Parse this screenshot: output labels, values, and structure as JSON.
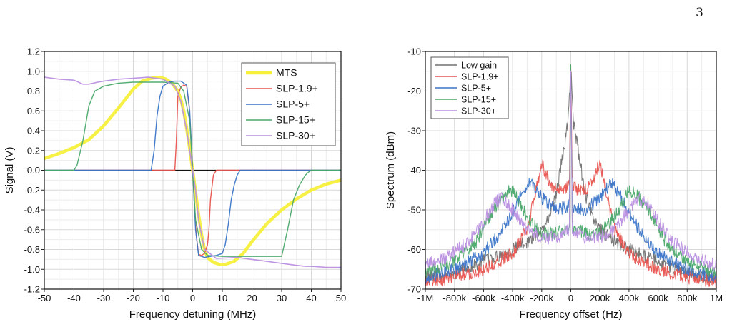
{
  "page": {
    "number": "3"
  },
  "chart_data": [
    {
      "type": "line",
      "title": "",
      "xlabel": "Frequency detuning (MHz)",
      "ylabel": "Signal (V)",
      "xlim": [
        -50,
        50
      ],
      "ylim": [
        -1.2,
        1.2
      ],
      "xticks": [
        -50,
        -40,
        -30,
        -20,
        -10,
        0,
        10,
        20,
        30,
        40,
        50
      ],
      "xtick_labels": [
        "-50",
        "-40",
        "-30",
        "-20",
        "-10",
        "0",
        "10",
        "20",
        "30",
        "40",
        "50"
      ],
      "yticks": [
        -1.2,
        -1.0,
        -0.8,
        -0.6,
        -0.4,
        -0.2,
        0.0,
        0.2,
        0.4,
        0.6,
        0.8,
        1.0,
        1.2
      ],
      "ytick_labels": [
        "-1.2",
        "-1.0",
        "-0.8",
        "-0.6",
        "-0.4",
        "-0.2",
        "0.0",
        "0.2",
        "0.4",
        "0.6",
        "0.8",
        "1.0",
        "1.2"
      ],
      "grid": true,
      "legend_position": "top-right",
      "zero_line": true,
      "series": [
        {
          "name": "MTS",
          "color": "#f6f03a",
          "x": [
            -50,
            -45,
            -40,
            -35,
            -30,
            -25,
            -20,
            -17,
            -14,
            -11,
            -9,
            -7,
            -5,
            -4,
            -3,
            -2,
            -1,
            0,
            1,
            2,
            3,
            4,
            5,
            7,
            9,
            11,
            14,
            17,
            20,
            25,
            30,
            35,
            40,
            45,
            50
          ],
          "y": [
            0.12,
            0.17,
            0.23,
            0.31,
            0.45,
            0.63,
            0.82,
            0.9,
            0.93,
            0.94,
            0.92,
            0.88,
            0.8,
            0.72,
            0.6,
            0.42,
            0.22,
            0.0,
            -0.22,
            -0.45,
            -0.65,
            -0.8,
            -0.88,
            -0.93,
            -0.95,
            -0.95,
            -0.92,
            -0.84,
            -0.72,
            -0.54,
            -0.4,
            -0.29,
            -0.2,
            -0.14,
            -0.1
          ]
        },
        {
          "name": "SLP-1.9+",
          "color": "#e8534e",
          "x": [
            -50,
            -6,
            -5.5,
            -5,
            -4,
            -3,
            -2,
            -1.2,
            -0.6,
            0,
            0.6,
            1.2,
            2,
            3,
            4,
            5,
            5.5,
            6,
            7,
            8,
            50
          ],
          "y": [
            0,
            0,
            0.3,
            0.75,
            0.84,
            0.86,
            0.85,
            0.65,
            0.35,
            0,
            -0.35,
            -0.65,
            -0.85,
            -0.86,
            -0.84,
            -0.75,
            -0.6,
            -0.3,
            -0.05,
            0,
            0
          ]
        },
        {
          "name": "SLP-5+",
          "color": "#3a74c8",
          "x": [
            -50,
            -14,
            -13,
            -12,
            -11,
            -10,
            -8,
            -6,
            -4,
            -2,
            -1,
            0,
            1,
            2,
            4,
            6,
            8,
            10,
            11,
            12,
            13,
            14,
            15,
            16,
            50
          ],
          "y": [
            0,
            0,
            0.2,
            0.55,
            0.75,
            0.85,
            0.89,
            0.9,
            0.9,
            0.86,
            0.6,
            0,
            -0.6,
            -0.86,
            -0.88,
            -0.87,
            -0.86,
            -0.84,
            -0.75,
            -0.55,
            -0.3,
            -0.15,
            -0.05,
            0,
            0
          ]
        },
        {
          "name": "SLP-15+",
          "color": "#4aa86a",
          "x": [
            -50,
            -40,
            -39,
            -37,
            -35,
            -33,
            -30,
            -25,
            -20,
            -15,
            -10,
            -5,
            -3,
            -1,
            0,
            1,
            3,
            5,
            10,
            15,
            20,
            25,
            30,
            32,
            34,
            36,
            38,
            39,
            40,
            50
          ],
          "y": [
            0,
            0,
            0.05,
            0.3,
            0.65,
            0.8,
            0.85,
            0.88,
            0.89,
            0.89,
            0.89,
            0.88,
            0.8,
            0.5,
            0,
            -0.5,
            -0.8,
            -0.86,
            -0.87,
            -0.87,
            -0.87,
            -0.87,
            -0.87,
            -0.6,
            -0.3,
            -0.15,
            -0.05,
            -0.02,
            0,
            0
          ]
        },
        {
          "name": "SLP-30+",
          "color": "#b98fe0",
          "x": [
            -50,
            -45,
            -40,
            -37,
            -35,
            -32,
            -30,
            -25,
            -20,
            -15,
            -10,
            -6,
            -4,
            -2,
            -1,
            0,
            1,
            2,
            4,
            8,
            15,
            20,
            25,
            30,
            35,
            38,
            40,
            45,
            50
          ],
          "y": [
            0.94,
            0.92,
            0.91,
            0.87,
            0.87,
            0.89,
            0.9,
            0.92,
            0.93,
            0.94,
            0.92,
            0.85,
            0.7,
            0.4,
            0.2,
            0,
            -0.2,
            -0.5,
            -0.8,
            -0.89,
            -0.88,
            -0.9,
            -0.92,
            -0.94,
            -0.96,
            -0.97,
            -0.97,
            -0.98,
            -0.98
          ]
        }
      ]
    },
    {
      "type": "line",
      "title": "",
      "xlabel": "Frequency offset (Hz)",
      "ylabel": "Spectrum (dBm)",
      "xlim": [
        -1000000,
        1000000
      ],
      "ylim": [
        -70,
        -10
      ],
      "xticks": [
        -1000000,
        -800000,
        -600000,
        -400000,
        -200000,
        0,
        200000,
        400000,
        600000,
        800000,
        1000000
      ],
      "xtick_labels": [
        "-1M",
        "-800k",
        "-600k",
        "-400k",
        "-200k",
        "0",
        "200k",
        "400k",
        "600k",
        "800k",
        "1M"
      ],
      "yticks": [
        -70,
        -60,
        -50,
        -40,
        -30,
        -20,
        -10
      ],
      "ytick_labels": [
        "-70",
        "-60",
        "-50",
        "-40",
        "-30",
        "-20",
        "-10"
      ],
      "grid": true,
      "legend_position": "top-left",
      "series": [
        {
          "name": "Low gain",
          "color": "#707070",
          "x": [
            -1000000,
            -800000,
            -600000,
            -400000,
            -300000,
            -200000,
            -150000,
            -100000,
            -50000,
            -20000,
            0,
            20000,
            50000,
            100000,
            150000,
            200000,
            300000,
            400000,
            600000,
            800000,
            1000000
          ],
          "y": [
            -67,
            -66,
            -63,
            -60,
            -58,
            -55,
            -52,
            -46,
            -35,
            -28,
            -14.5,
            -28,
            -35,
            -46,
            -52,
            -55,
            -58,
            -60,
            -63,
            -66,
            -67
          ]
        },
        {
          "name": "SLP-1.9+",
          "color": "#e8534e",
          "x": [
            -1000000,
            -800000,
            -600000,
            -400000,
            -300000,
            -250000,
            -200000,
            -150000,
            -100000,
            -50000,
            -10000,
            0,
            10000,
            50000,
            100000,
            150000,
            200000,
            250000,
            300000,
            400000,
            600000,
            800000,
            1000000
          ],
          "y": [
            -68,
            -67,
            -65,
            -61,
            -55,
            -47,
            -38,
            -43,
            -45,
            -45,
            -43,
            -14.5,
            -43,
            -45,
            -45,
            -43,
            -38,
            -47,
            -55,
            -61,
            -65,
            -67,
            -68
          ]
        },
        {
          "name": "SLP-5+",
          "color": "#3a74c8",
          "x": [
            -1000000,
            -800000,
            -600000,
            -450000,
            -350000,
            -280000,
            -200000,
            -100000,
            -10000,
            0,
            10000,
            100000,
            200000,
            280000,
            350000,
            450000,
            600000,
            800000,
            1000000
          ],
          "y": [
            -67,
            -65,
            -61,
            -54,
            -47,
            -43,
            -47,
            -50,
            -49,
            -14.5,
            -49,
            -50,
            -47,
            -43,
            -47,
            -54,
            -61,
            -65,
            -67
          ]
        },
        {
          "name": "SLP-15+",
          "color": "#4aa86a",
          "x": [
            -1000000,
            -800000,
            -650000,
            -550000,
            -450000,
            -400000,
            -300000,
            -200000,
            -100000,
            -10000,
            0,
            10000,
            100000,
            200000,
            300000,
            400000,
            450000,
            550000,
            650000,
            800000,
            1000000
          ],
          "y": [
            -66,
            -63,
            -58,
            -51,
            -46,
            -45,
            -52,
            -56,
            -56,
            -54,
            -14.5,
            -54,
            -56,
            -56,
            -52,
            -45,
            -46,
            -51,
            -58,
            -63,
            -66
          ]
        },
        {
          "name": "SLP-30+",
          "color": "#b98fe0",
          "x": [
            -1000000,
            -850000,
            -700000,
            -600000,
            -520000,
            -470000,
            -400000,
            -300000,
            -200000,
            -100000,
            -10000,
            0,
            10000,
            100000,
            200000,
            300000,
            400000,
            470000,
            520000,
            600000,
            700000,
            850000,
            1000000
          ],
          "y": [
            -64,
            -62,
            -58,
            -53,
            -48,
            -47,
            -50,
            -55,
            -57,
            -57,
            -55,
            -14.5,
            -55,
            -57,
            -57,
            -55,
            -50,
            -47,
            -48,
            -53,
            -58,
            -62,
            -64
          ]
        }
      ]
    }
  ]
}
